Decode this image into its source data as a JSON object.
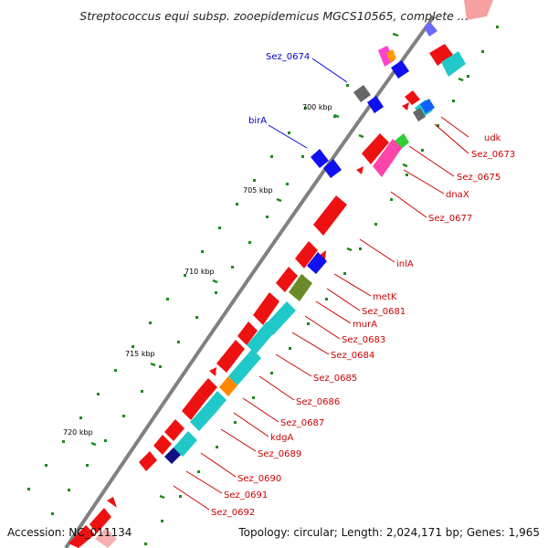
{
  "title": "Streptococcus equi subsp. zooepidemicus MGCS10565, complete ...",
  "footer": {
    "accession": "Accession: NC_011134",
    "summary": "Topology: circular; Length: 2,024,171 bp; Genes: 1,965"
  },
  "colors": {
    "backbone": "#808080",
    "forward_gene": "#ff0000",
    "rna_gene": "#ff0000",
    "cds_cyan": "#20c8c8",
    "left_label": "#0000cc",
    "right_label": "#cc0000",
    "tick_mark": "#008000"
  },
  "scale_ticks": [
    "700 kbp",
    "705 kbp",
    "710 kbp",
    "715 kbp",
    "720 kbp"
  ],
  "left_labels": [
    "Sez_0674",
    "birA"
  ],
  "right_labels": [
    "udk",
    "Sez_0673",
    "Sez_0675",
    "dnaX",
    "Sez_0677",
    "inlA",
    "metK",
    "Sez_0681",
    "murA",
    "Sez_0683",
    "Sez_0684",
    "Sez_0685",
    "Sez_0686",
    "Sez_0687",
    "kdgA",
    "Sez_0689",
    "Sez_0690",
    "Sez_0691",
    "Sez_0692"
  ]
}
